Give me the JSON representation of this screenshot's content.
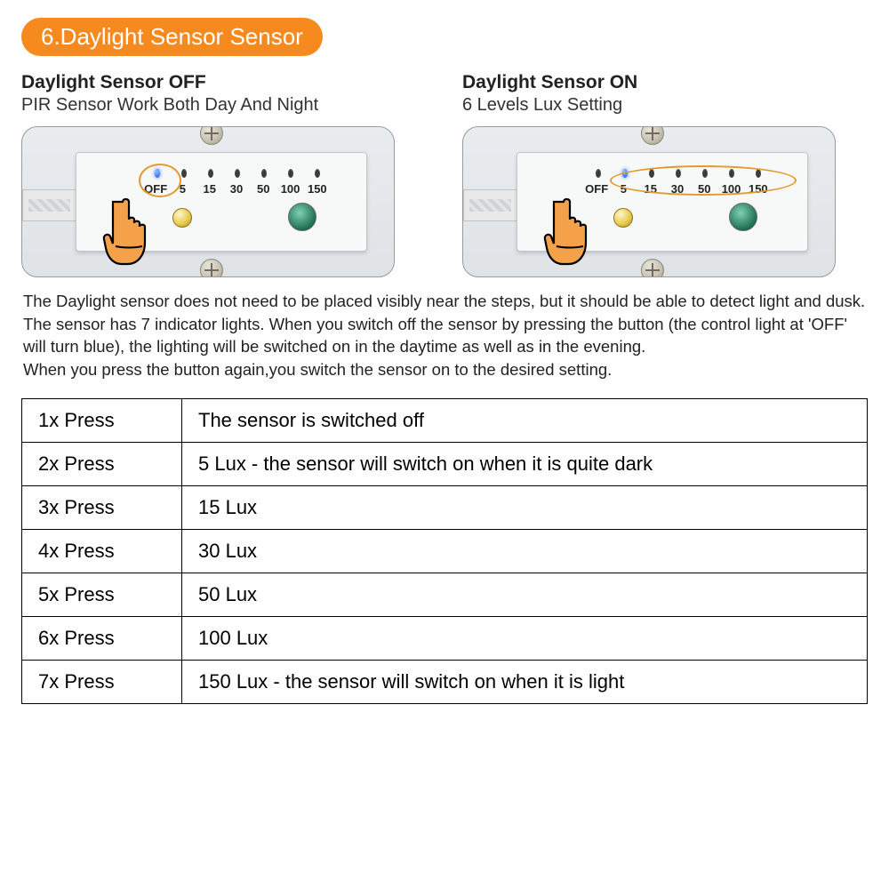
{
  "badge": "6.Daylight Sensor Sensor",
  "left": {
    "heading": "Daylight Sensor OFF",
    "sub": "PIR Sensor Work Both Day And Night"
  },
  "right": {
    "heading": "Daylight Sensor ON",
    "sub": "6 Levels Lux Setting"
  },
  "device": {
    "labels": [
      "OFF",
      "5",
      "15",
      "30",
      "50",
      "100",
      "150"
    ]
  },
  "description": "The Daylight sensor does not need to be placed visibly near the steps, but it should be able to detect light and dusk.\nThe sensor has 7 indicator lights. When you switch off the sensor by pressing the button (the control light at 'OFF' will turn blue), the lighting will be switched on in the daytime as well as in the evening.\nWhen you press the button again,you switch the sensor on to the desired setting.",
  "table": {
    "rows": [
      {
        "press": "1x Press",
        "desc": "The sensor is switched off"
      },
      {
        "press": "2x Press",
        "desc": "5 Lux - the sensor will switch on when it is quite dark"
      },
      {
        "press": "3x Press",
        "desc": "15 Lux"
      },
      {
        "press": "4x Press",
        "desc": "30 Lux"
      },
      {
        "press": "5x Press",
        "desc": "50 Lux"
      },
      {
        "press": "6x Press",
        "desc": "100 Lux"
      },
      {
        "press": "7x Press",
        "desc": "150 Lux - the sensor will switch on when it is light"
      }
    ]
  },
  "colors": {
    "badge_bg": "#f78a1f",
    "annotation": "#e39a2d"
  }
}
